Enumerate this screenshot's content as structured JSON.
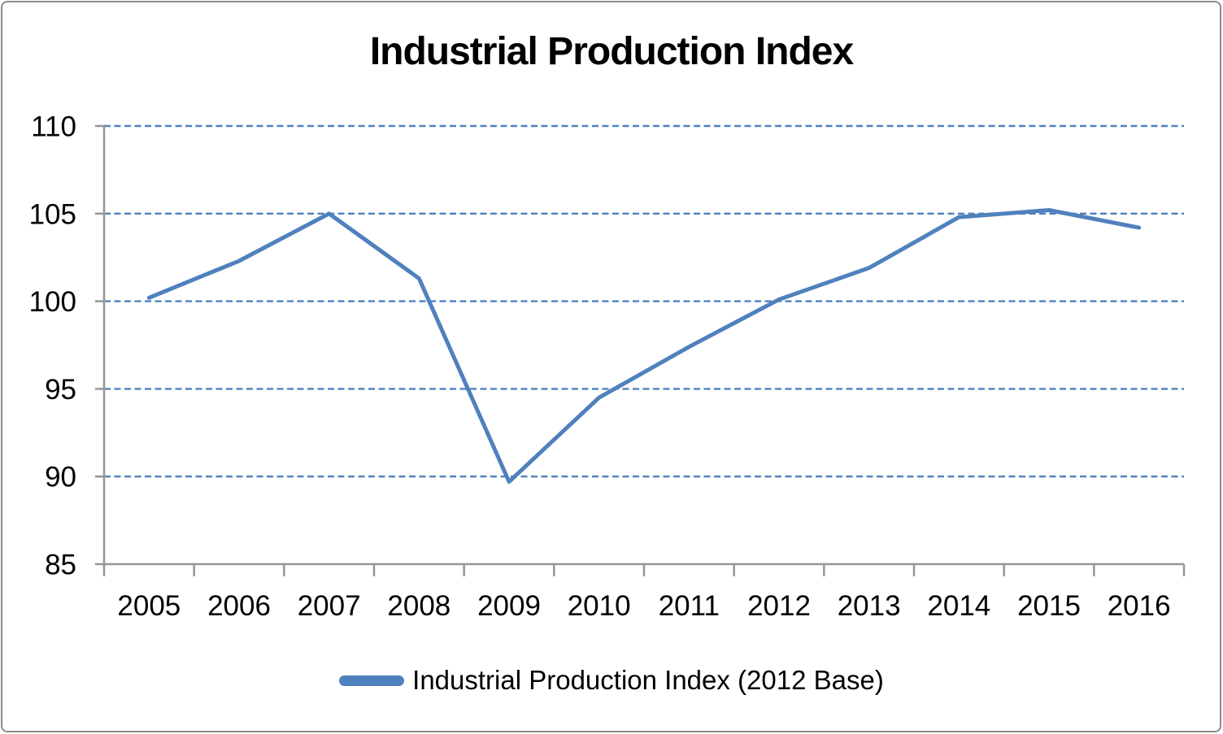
{
  "chart_data": {
    "type": "line",
    "title": "Industrial Production Index",
    "categories": [
      "2005",
      "2006",
      "2007",
      "2008",
      "2009",
      "2010",
      "2011",
      "2012",
      "2013",
      "2014",
      "2015",
      "2016"
    ],
    "series": [
      {
        "name": "Industrial Production Index (2012 Base)",
        "values": [
          100.2,
          102.3,
          105.0,
          101.3,
          89.7,
          94.5,
          97.4,
          100.1,
          101.9,
          104.8,
          105.2,
          104.2
        ]
      }
    ],
    "xlabel": "",
    "ylabel": "",
    "ylim": [
      85,
      110
    ],
    "yticks": [
      85,
      90,
      95,
      100,
      105,
      110
    ],
    "grid": "horizontal-dashed",
    "legend_position": "bottom",
    "colors": {
      "series": "#4f81bd",
      "gridline": "#4f81bd",
      "axis": "#969696",
      "text": "#000000",
      "border": "#8c8c8c"
    }
  }
}
